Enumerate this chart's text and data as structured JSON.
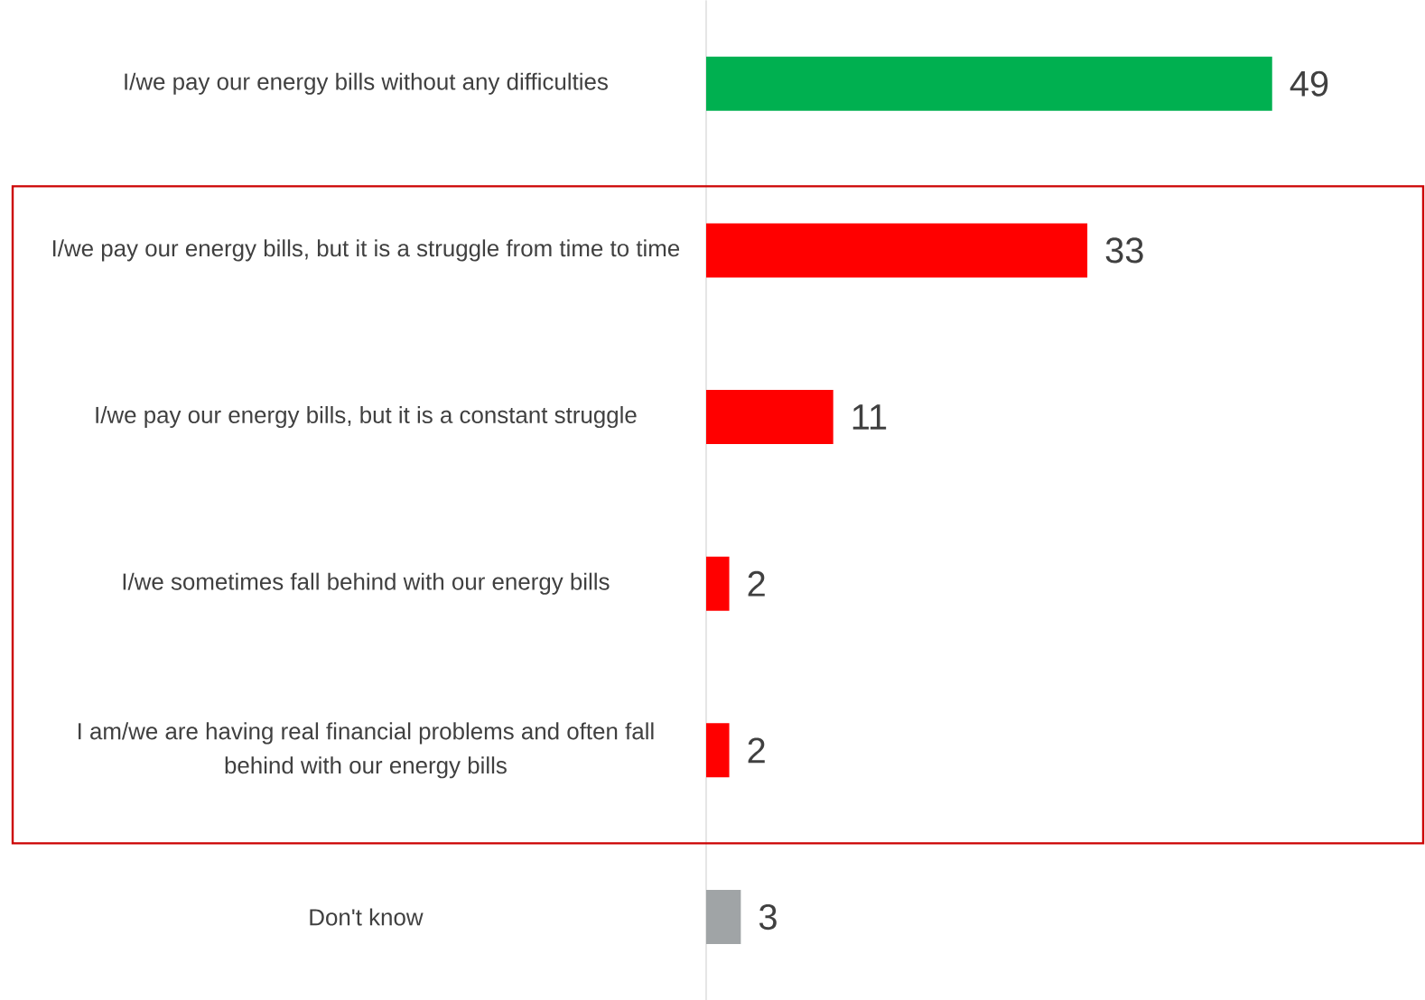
{
  "chart_data": {
    "type": "bar",
    "orientation": "horizontal",
    "categories": [
      "I/we pay our energy bills without any difficulties",
      "I/we pay our energy bills, but it is a struggle from time to time",
      "I/we pay our energy bills, but it is a constant struggle",
      "I/we sometimes fall behind with our energy bills",
      "I am/we are having real financial problems and often fall behind with our energy bills",
      "Don't know"
    ],
    "values": [
      49,
      33,
      11,
      2,
      2,
      3
    ],
    "colors": [
      "#00b050",
      "#ff0000",
      "#ff0000",
      "#ff0000",
      "#ff0000",
      "#a0a4a6"
    ],
    "data_labels": true
  }
}
